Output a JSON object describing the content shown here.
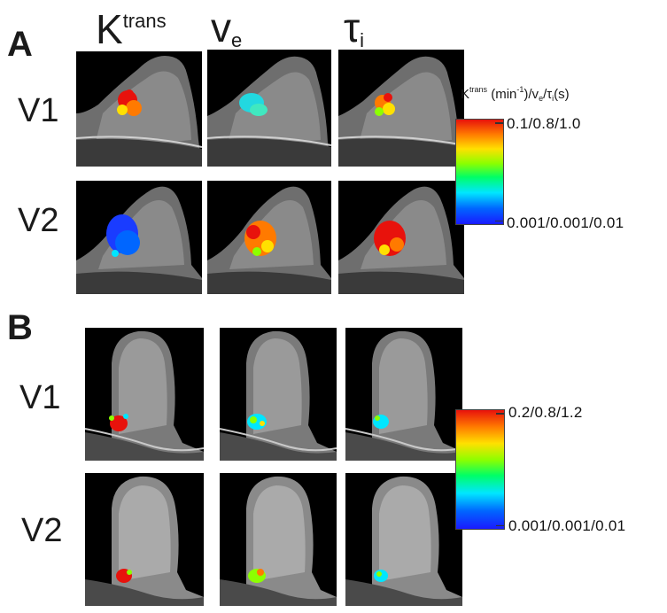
{
  "panels": {
    "a": "A",
    "b": "B"
  },
  "columns": {
    "ktrans": {
      "base": "K",
      "sup": "trans"
    },
    "ve": {
      "base": "v",
      "sub": "e"
    },
    "tau": {
      "base": "τ",
      "sub": "i"
    }
  },
  "rows": {
    "v1": "V1",
    "v2": "V2"
  },
  "colorbar_a": {
    "title": {
      "k": "K",
      "trans": "trans",
      "units": " (min",
      "exp": "-1",
      "sep1": ")/v",
      "e": "e",
      "sep2": "/τ",
      "i": "i",
      "end": "(s)"
    },
    "max": "0.1/0.8/1.0",
    "min": "0.001/0.001/0.01"
  },
  "colorbar_b": {
    "max": "0.2/0.8/1.2",
    "min": "0.001/0.001/0.01"
  },
  "colors": {
    "cmap_high": "#e8120c",
    "cmap_mid": "#00ff66",
    "cmap_low": "#1a1aff"
  }
}
